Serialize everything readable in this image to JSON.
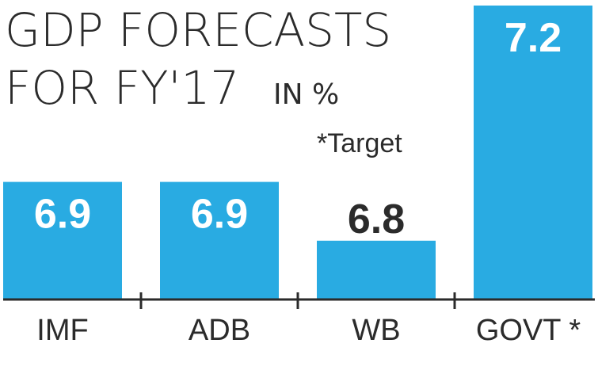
{
  "colors": {
    "bar": "#29abe2",
    "axis": "#2b2b2b",
    "label_in": "#ffffff",
    "label_out": "#2b2b2b"
  },
  "chart_data": {
    "type": "bar",
    "title_line1": "GDP FORECASTS",
    "title_line2": "FOR FY'17",
    "unit": "IN %",
    "note": "*Target",
    "categories": [
      "IMF",
      "ADB",
      "WB",
      "GOVT *"
    ],
    "values": [
      6.9,
      6.9,
      6.8,
      7.2
    ],
    "value_labels": [
      "6.9",
      "6.9",
      "6.8",
      "7.2"
    ],
    "ylim": [
      6.7,
      7.2
    ],
    "xlabel": "",
    "ylabel": ""
  }
}
